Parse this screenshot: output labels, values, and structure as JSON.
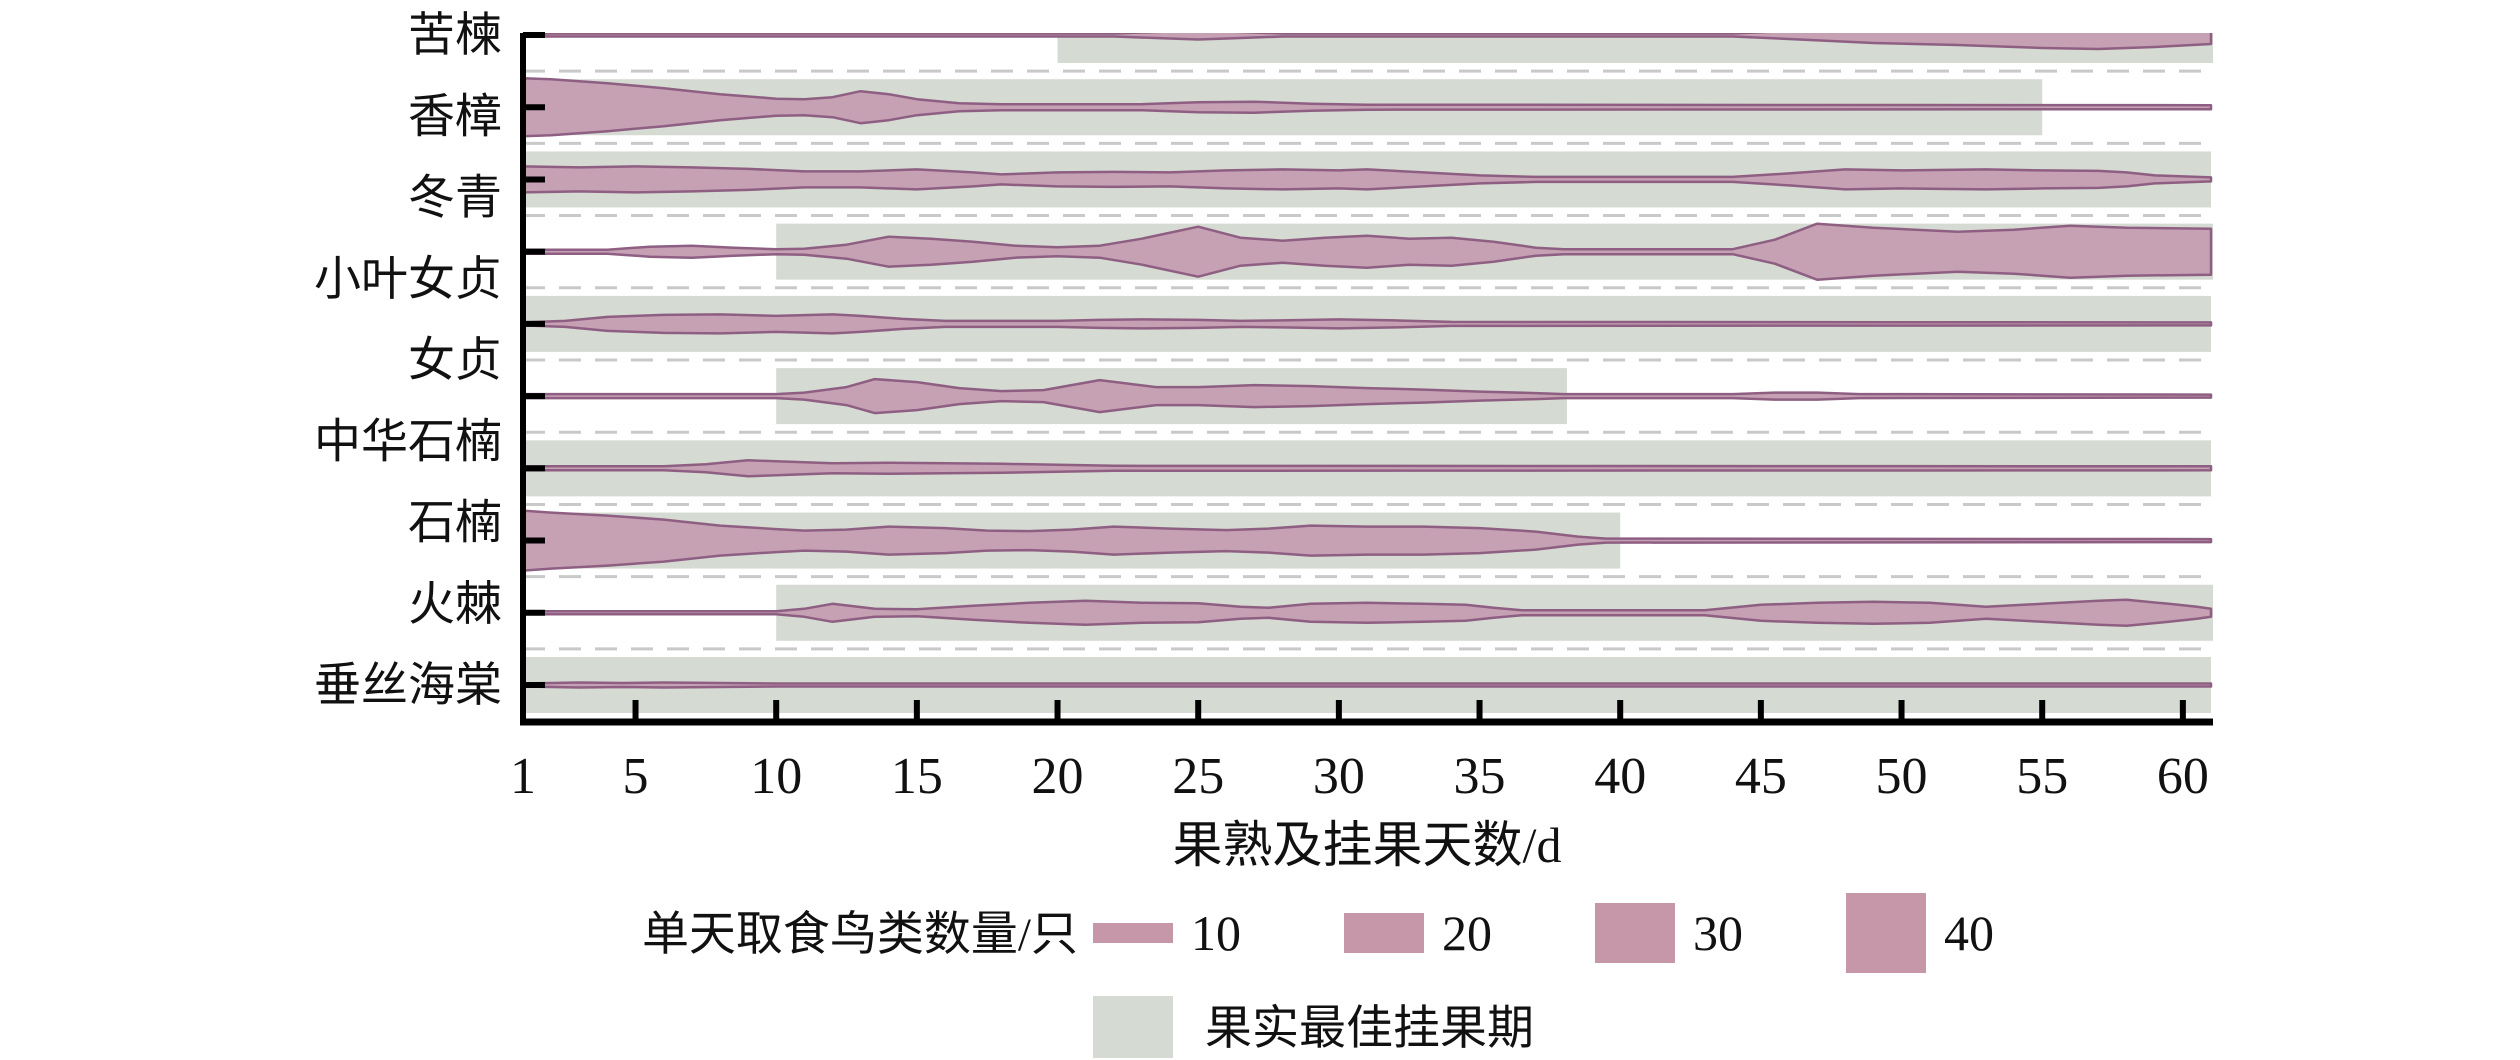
{
  "figure_title": "",
  "chart_data": {
    "type": "violin",
    "xlabel": "果熟及挂果天数/d",
    "xlim": [
      1,
      61
    ],
    "x_ticks": [
      1,
      5,
      10,
      15,
      20,
      25,
      30,
      35,
      40,
      45,
      50,
      55,
      60
    ],
    "y_labels": [
      "苦楝",
      "香樟",
      "冬青",
      "小叶女贞",
      "女贞",
      "中华石楠",
      "石楠",
      "火棘",
      "垂丝海棠"
    ],
    "size_legend": {
      "label": "单天取食鸟类数量/只",
      "values": [
        10,
        20,
        30,
        40
      ]
    },
    "band_legend": {
      "label": "果实最佳挂果期"
    },
    "colors": {
      "violin_fill": "#c6a1b4",
      "violin_stroke": "#8e5f82",
      "band": "#d5dad2",
      "dash": "#c9c9c9",
      "axis": "#000000"
    },
    "rows": [
      {
        "label": "苦楝",
        "best_period_days": [
          20,
          61
        ],
        "profile": [
          [
            1,
            1.5
          ],
          [
            22,
            1.5
          ],
          [
            23.5,
            3
          ],
          [
            25,
            4.5
          ],
          [
            26.5,
            3
          ],
          [
            28,
            1.5
          ],
          [
            44,
            1.5
          ],
          [
            46,
            4
          ],
          [
            49,
            8
          ],
          [
            52,
            10
          ],
          [
            55,
            13
          ],
          [
            57,
            14
          ],
          [
            59,
            12
          ],
          [
            61,
            9
          ]
        ]
      },
      {
        "label": "香樟",
        "best_period_days": [
          1,
          55
        ],
        "profile": [
          [
            1,
            29
          ],
          [
            2,
            28
          ],
          [
            4,
            24
          ],
          [
            6,
            19
          ],
          [
            8,
            13
          ],
          [
            10,
            8.5
          ],
          [
            11,
            8
          ],
          [
            12,
            10
          ],
          [
            13,
            16
          ],
          [
            14,
            13
          ],
          [
            15,
            8
          ],
          [
            16.5,
            4
          ],
          [
            18,
            3
          ],
          [
            23,
            3
          ],
          [
            25,
            5
          ],
          [
            27,
            5.5
          ],
          [
            29,
            3.5
          ],
          [
            31,
            2.5
          ],
          [
            61,
            2
          ]
        ]
      },
      {
        "label": "冬青",
        "best_period_days": [
          1,
          61
        ],
        "profile": [
          [
            1,
            13
          ],
          [
            3,
            12
          ],
          [
            5,
            13
          ],
          [
            7,
            12
          ],
          [
            9,
            10.5
          ],
          [
            11,
            8
          ],
          [
            13,
            8
          ],
          [
            15,
            10
          ],
          [
            17,
            7
          ],
          [
            18,
            5
          ],
          [
            20,
            7
          ],
          [
            22,
            7.5
          ],
          [
            24,
            7
          ],
          [
            26,
            9
          ],
          [
            28,
            10
          ],
          [
            30,
            9
          ],
          [
            31,
            10
          ],
          [
            33,
            7
          ],
          [
            35,
            4
          ],
          [
            37,
            2.5
          ],
          [
            44,
            2.5
          ],
          [
            46,
            6
          ],
          [
            48,
            10
          ],
          [
            50,
            9
          ],
          [
            53,
            10
          ],
          [
            55,
            9
          ],
          [
            57,
            8.5
          ],
          [
            58,
            7
          ],
          [
            59,
            4
          ],
          [
            61,
            2
          ]
        ]
      },
      {
        "label": "小叶女贞",
        "best_period_days": [
          10,
          61
        ],
        "profile": [
          [
            1,
            2
          ],
          [
            4,
            2
          ],
          [
            5.5,
            5
          ],
          [
            7,
            6
          ],
          [
            8.5,
            4
          ],
          [
            10,
            2.5
          ],
          [
            11,
            3
          ],
          [
            12.5,
            7
          ],
          [
            14,
            15
          ],
          [
            15.5,
            13
          ],
          [
            17,
            10
          ],
          [
            18.5,
            6
          ],
          [
            20,
            4.5
          ],
          [
            21.5,
            6
          ],
          [
            23,
            13
          ],
          [
            25,
            25
          ],
          [
            26.5,
            14
          ],
          [
            28,
            11
          ],
          [
            29.5,
            14
          ],
          [
            31,
            16
          ],
          [
            32.5,
            13
          ],
          [
            34,
            14
          ],
          [
            35.5,
            10
          ],
          [
            37,
            4
          ],
          [
            38,
            2.5
          ],
          [
            44,
            2.5
          ],
          [
            45.5,
            12
          ],
          [
            47,
            28
          ],
          [
            49,
            24
          ],
          [
            52,
            20
          ],
          [
            54,
            22
          ],
          [
            56,
            26
          ],
          [
            58,
            24
          ],
          [
            61,
            23
          ]
        ]
      },
      {
        "label": "女贞",
        "best_period_days": [
          1,
          61
        ],
        "profile": [
          [
            1,
            1.5
          ],
          [
            2.5,
            3
          ],
          [
            4,
            7
          ],
          [
            6,
            9
          ],
          [
            8,
            9.5
          ],
          [
            10,
            8
          ],
          [
            12,
            9.5
          ],
          [
            13,
            8
          ],
          [
            14.5,
            5
          ],
          [
            16,
            3
          ],
          [
            20,
            3
          ],
          [
            21.5,
            4
          ],
          [
            23,
            4.5
          ],
          [
            25,
            4
          ],
          [
            26.5,
            3
          ],
          [
            28,
            3.5
          ],
          [
            30,
            4.5
          ],
          [
            32,
            3.5
          ],
          [
            34,
            2
          ],
          [
            61,
            1.5
          ]
        ]
      },
      {
        "label": "",
        "best_period_days": [
          10,
          38
        ],
        "profile": [
          [
            1,
            2
          ],
          [
            10,
            2
          ],
          [
            11,
            3.5
          ],
          [
            12.5,
            9
          ],
          [
            13.5,
            17
          ],
          [
            15,
            14
          ],
          [
            16.5,
            8
          ],
          [
            18,
            5
          ],
          [
            19.5,
            6
          ],
          [
            21.5,
            16
          ],
          [
            23.5,
            9
          ],
          [
            25,
            9
          ],
          [
            27,
            11
          ],
          [
            29,
            10
          ],
          [
            31,
            8
          ],
          [
            33,
            6.5
          ],
          [
            35,
            4.5
          ],
          [
            37,
            3
          ],
          [
            38,
            2
          ],
          [
            44,
            2
          ],
          [
            45.5,
            3.5
          ],
          [
            47,
            3.5
          ],
          [
            48.5,
            2
          ],
          [
            61,
            1.5
          ]
        ]
      },
      {
        "label": "中华石楠",
        "best_period_days": [
          1,
          61
        ],
        "profile": [
          [
            1,
            2
          ],
          [
            6,
            2
          ],
          [
            7.5,
            4
          ],
          [
            9,
            8
          ],
          [
            10.5,
            6.5
          ],
          [
            12,
            5
          ],
          [
            14,
            5.5
          ],
          [
            16,
            5
          ],
          [
            18,
            4.5
          ],
          [
            20,
            3.5
          ],
          [
            22,
            2.5
          ],
          [
            61,
            2
          ]
        ]
      },
      {
        "label": "石楠",
        "best_period_days": [
          1,
          40
        ],
        "profile": [
          [
            1,
            30
          ],
          [
            2,
            28
          ],
          [
            4,
            25
          ],
          [
            6,
            21
          ],
          [
            8,
            15
          ],
          [
            10,
            11.5
          ],
          [
            11,
            10
          ],
          [
            12.5,
            11
          ],
          [
            14,
            14
          ],
          [
            16,
            12.5
          ],
          [
            17.5,
            10
          ],
          [
            19,
            9.5
          ],
          [
            20.5,
            11
          ],
          [
            22,
            14
          ],
          [
            24,
            12
          ],
          [
            26,
            10.5
          ],
          [
            27.5,
            12
          ],
          [
            29,
            15
          ],
          [
            31,
            14
          ],
          [
            33,
            14
          ],
          [
            35,
            12.5
          ],
          [
            37,
            9
          ],
          [
            38.5,
            4
          ],
          [
            39.5,
            2
          ],
          [
            61,
            1.5
          ]
        ]
      },
      {
        "label": "火棘",
        "best_period_days": [
          10,
          61
        ],
        "profile": [
          [
            1,
            1.5
          ],
          [
            10,
            1.5
          ],
          [
            11,
            4
          ],
          [
            12,
            9
          ],
          [
            13.5,
            4
          ],
          [
            15,
            3.5
          ],
          [
            17,
            7
          ],
          [
            19,
            10
          ],
          [
            21,
            12
          ],
          [
            23,
            10
          ],
          [
            25,
            9.5
          ],
          [
            26.5,
            6
          ],
          [
            27.5,
            5
          ],
          [
            29,
            9
          ],
          [
            31,
            10
          ],
          [
            33,
            9
          ],
          [
            34.5,
            8
          ],
          [
            35.5,
            5
          ],
          [
            36.5,
            2.5
          ],
          [
            43,
            2.5
          ],
          [
            45,
            8
          ],
          [
            47,
            10
          ],
          [
            49,
            11
          ],
          [
            51,
            10
          ],
          [
            53,
            6
          ],
          [
            55,
            9
          ],
          [
            57,
            12
          ],
          [
            58,
            13
          ],
          [
            59.5,
            9
          ],
          [
            60.5,
            6
          ],
          [
            61,
            4
          ]
        ]
      },
      {
        "label": "垂丝海棠",
        "best_period_days": [
          1,
          61
        ],
        "profile": [
          [
            1,
            1.5
          ],
          [
            3,
            2.5
          ],
          [
            4.5,
            2
          ],
          [
            6,
            2.5
          ],
          [
            8,
            2
          ],
          [
            10,
            1.5
          ],
          [
            61,
            1.5
          ]
        ]
      }
    ]
  }
}
